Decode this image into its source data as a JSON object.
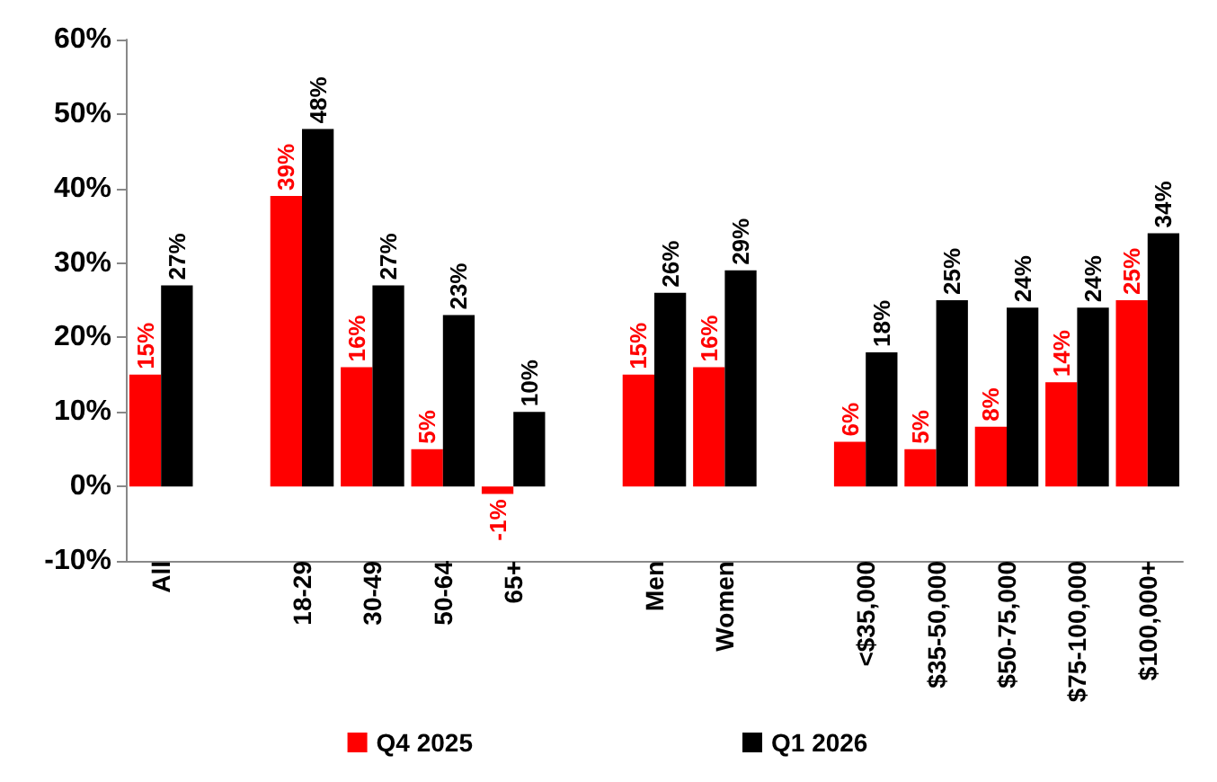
{
  "chart_data": {
    "type": "bar",
    "categories": [
      "All",
      null,
      "18-29",
      "30-49",
      "50-64",
      "65+",
      null,
      "Men",
      "Women",
      null,
      "<$35,000",
      "$35-50,000",
      "$50-75,000",
      "$75-100,000",
      "$100,000+"
    ],
    "series": [
      {
        "name": "Q4 2025",
        "color": "#ff0000",
        "values": [
          15,
          null,
          39,
          16,
          5,
          -1,
          null,
          15,
          16,
          null,
          6,
          5,
          8,
          14,
          25
        ],
        "value_labels": [
          "15%",
          null,
          "39%",
          "16%",
          "5%",
          "-1%",
          null,
          "15%",
          "16%",
          null,
          "6%",
          "5%",
          "8%",
          "14%",
          "25%"
        ]
      },
      {
        "name": "Q1 2026",
        "color": "#000000",
        "values": [
          27,
          null,
          48,
          27,
          23,
          10,
          null,
          26,
          29,
          null,
          18,
          25,
          24,
          24,
          34
        ],
        "value_labels": [
          "27%",
          null,
          "48%",
          "27%",
          "23%",
          "10%",
          null,
          "26%",
          "29%",
          null,
          "18%",
          "25%",
          "24%",
          "24%",
          "34%"
        ]
      }
    ],
    "ylim": [
      -10,
      60
    ],
    "yticks": [
      {
        "value": -10,
        "label": "-10%"
      },
      {
        "value": 0,
        "label": "0%"
      },
      {
        "value": 10,
        "label": "10%"
      },
      {
        "value": 20,
        "label": "20%"
      },
      {
        "value": 30,
        "label": "30%"
      },
      {
        "value": 40,
        "label": "40%"
      },
      {
        "value": 50,
        "label": "50%"
      },
      {
        "value": 60,
        "label": "60%"
      }
    ],
    "grid": false,
    "legend": "bottom"
  }
}
